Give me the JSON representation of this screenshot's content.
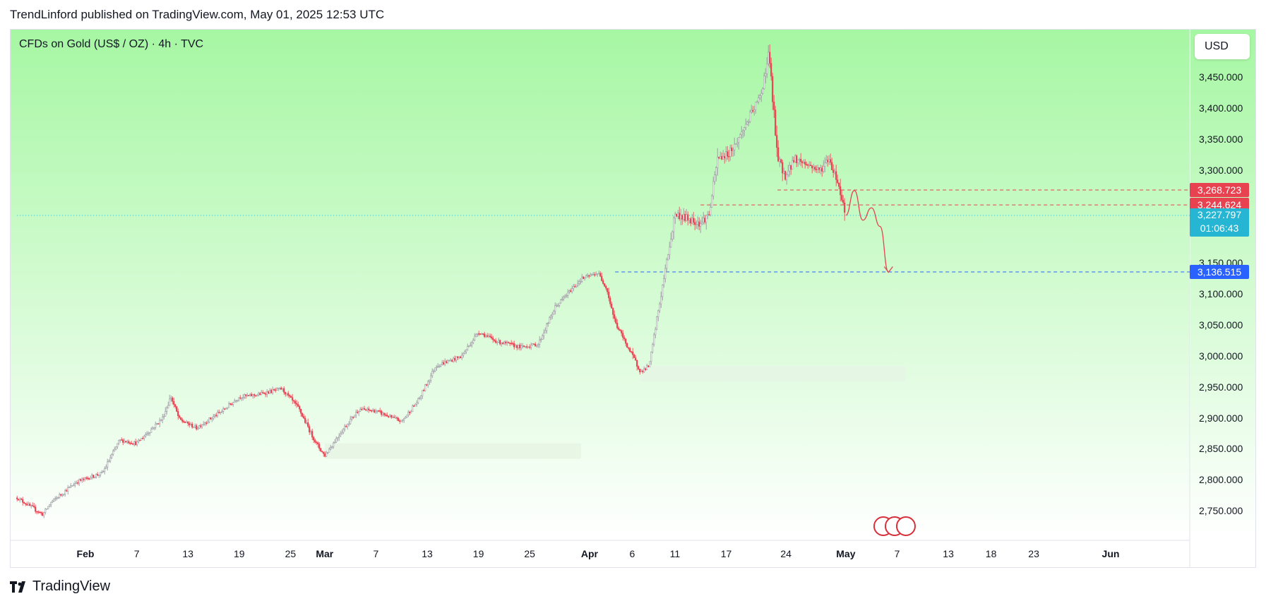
{
  "publisher_line": "TrendLinford published on TradingView.com, May 01, 2025 12:53 UTC",
  "symbol_title": "CFDs on Gold (US$ / OZ) · 4h · TVC",
  "currency": "USD",
  "brand": "TradingView",
  "colors": {
    "bg_top": "#a6f7a3",
    "bg_bottom": "#ffffff",
    "up_candle": "#9a9aa0",
    "down_candle": "#e8414f",
    "resistance_line": "#e8414f",
    "support_line": "#2962ff",
    "live_price": "#26b6d4"
  },
  "icons": [
    "tradingview-logo-icon",
    "us-flag-icon"
  ],
  "price_tags": {
    "resistance_high": "3,268.723",
    "resistance_low": "3,244.624",
    "live_price": "3,227.797",
    "countdown": "01:06:43",
    "target": "3,136.515"
  },
  "chart_data": {
    "type": "candlestick",
    "timeframe": "4h",
    "x_tick_labels": [
      "Feb",
      "7",
      "13",
      "19",
      "25",
      "Mar",
      "7",
      "13",
      "19",
      "25",
      "Apr",
      "6",
      "11",
      "17",
      "24",
      "May",
      "7",
      "13",
      "18",
      "23",
      "Jun"
    ],
    "x_tick_dates": [
      "2025-02-01",
      "2025-02-07",
      "2025-02-13",
      "2025-02-19",
      "2025-02-25",
      "2025-03-01",
      "2025-03-07",
      "2025-03-13",
      "2025-03-19",
      "2025-03-25",
      "2025-04-01",
      "2025-04-06",
      "2025-04-11",
      "2025-04-17",
      "2025-04-24",
      "2025-05-01",
      "2025-05-07",
      "2025-05-13",
      "2025-05-18",
      "2025-05-23",
      "2025-06-01"
    ],
    "bold_ticks": [
      "Feb",
      "Mar",
      "Apr",
      "May",
      "Jun"
    ],
    "y_ticks": [
      "3,450.000",
      "3,400.000",
      "3,350.000",
      "3,300.000",
      "3,150.000",
      "3,100.000",
      "3,050.000",
      "3,000.000",
      "2,950.000",
      "2,900.000",
      "2,850.000",
      "2,800.000",
      "2,750.000"
    ],
    "y_range": [
      2715,
      3505
    ],
    "price_path": [
      {
        "date": "2025-01-24",
        "close": 2772
      },
      {
        "date": "2025-01-27",
        "close": 2745
      },
      {
        "date": "2025-01-28",
        "close": 2765
      },
      {
        "date": "2025-01-31",
        "close": 2798
      },
      {
        "date": "2025-02-03",
        "close": 2812
      },
      {
        "date": "2025-02-05",
        "close": 2865
      },
      {
        "date": "2025-02-07",
        "close": 2860
      },
      {
        "date": "2025-02-10",
        "close": 2900
      },
      {
        "date": "2025-02-11",
        "close": 2935
      },
      {
        "date": "2025-02-12",
        "close": 2898
      },
      {
        "date": "2025-02-14",
        "close": 2885
      },
      {
        "date": "2025-02-17",
        "close": 2912
      },
      {
        "date": "2025-02-19",
        "close": 2935
      },
      {
        "date": "2025-02-21",
        "close": 2938
      },
      {
        "date": "2025-02-24",
        "close": 2948
      },
      {
        "date": "2025-02-26",
        "close": 2915
      },
      {
        "date": "2025-02-28",
        "close": 2860
      },
      {
        "date": "2025-03-01",
        "close": 2840
      },
      {
        "date": "2025-03-03",
        "close": 2880
      },
      {
        "date": "2025-03-05",
        "close": 2915
      },
      {
        "date": "2025-03-07",
        "close": 2912
      },
      {
        "date": "2025-03-10",
        "close": 2895
      },
      {
        "date": "2025-03-12",
        "close": 2930
      },
      {
        "date": "2025-03-14",
        "close": 2985
      },
      {
        "date": "2025-03-17",
        "close": 3000
      },
      {
        "date": "2025-03-19",
        "close": 3040
      },
      {
        "date": "2025-03-21",
        "close": 3025
      },
      {
        "date": "2025-03-24",
        "close": 3015
      },
      {
        "date": "2025-03-26",
        "close": 3020
      },
      {
        "date": "2025-03-28",
        "close": 3080
      },
      {
        "date": "2025-03-31",
        "close": 3125
      },
      {
        "date": "2025-04-02",
        "close": 3135
      },
      {
        "date": "2025-04-03",
        "close": 3110
      },
      {
        "date": "2025-04-04",
        "close": 3055
      },
      {
        "date": "2025-04-07",
        "close": 2975
      },
      {
        "date": "2025-04-08",
        "close": 2985
      },
      {
        "date": "2025-04-09",
        "close": 3070
      },
      {
        "date": "2025-04-10",
        "close": 3150
      },
      {
        "date": "2025-04-11",
        "close": 3230
      },
      {
        "date": "2025-04-14",
        "close": 3215
      },
      {
        "date": "2025-04-15",
        "close": 3230
      },
      {
        "date": "2025-04-16",
        "close": 3320
      },
      {
        "date": "2025-04-17",
        "close": 3325
      },
      {
        "date": "2025-04-18",
        "close": 3340
      },
      {
        "date": "2025-04-21",
        "close": 3420
      },
      {
        "date": "2025-04-22",
        "close": 3490
      },
      {
        "date": "2025-04-23",
        "close": 3320
      },
      {
        "date": "2025-04-24",
        "close": 3290
      },
      {
        "date": "2025-04-25",
        "close": 3320
      },
      {
        "date": "2025-04-28",
        "close": 3300
      },
      {
        "date": "2025-04-29",
        "close": 3320
      },
      {
        "date": "2025-04-30",
        "close": 3285
      },
      {
        "date": "2025-05-01",
        "close": 3228
      }
    ],
    "horizontal_levels": [
      {
        "price": 3268.723,
        "style": "dashed",
        "color": "#e8414f",
        "from_date": "2025-04-23"
      },
      {
        "price": 3244.624,
        "style": "dashed",
        "color": "#e8414f",
        "from_date": "2025-04-14"
      },
      {
        "price": 3136.515,
        "style": "dashed",
        "color": "#2962ff",
        "from_date": "2025-04-04"
      },
      {
        "price": 3227.797,
        "style": "dotted",
        "color": "#26b6d4",
        "from_date": "2025-01-24"
      }
    ],
    "zones": [
      {
        "from_date": "2025-03-01",
        "to_date": "2025-03-31",
        "low": 2835,
        "high": 2860
      },
      {
        "from_date": "2025-04-07",
        "to_date": "2025-05-08",
        "low": 2960,
        "high": 2985
      }
    ],
    "projection": [
      {
        "date": "2025-05-01",
        "price": 3228
      },
      {
        "date": "2025-05-02",
        "price": 3268
      },
      {
        "date": "2025-05-03",
        "price": 3220
      },
      {
        "date": "2025-05-04",
        "price": 3240
      },
      {
        "date": "2025-05-05",
        "price": 3210
      },
      {
        "date": "2025-05-06",
        "price": 3136
      }
    ],
    "legend": "none",
    "grid": false
  }
}
